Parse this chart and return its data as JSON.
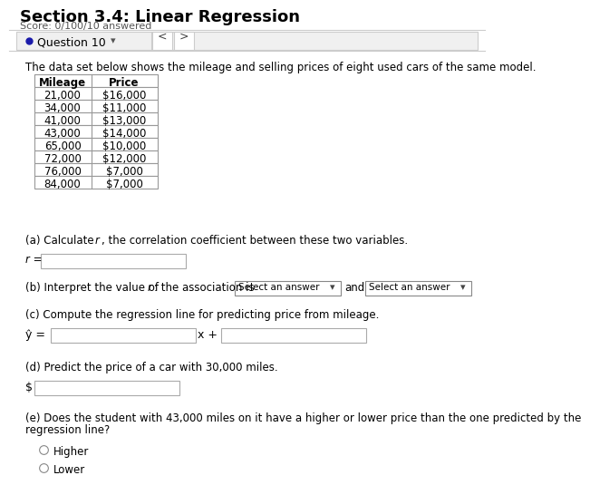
{
  "title": "Section 3.4: Linear Regression",
  "score_text": "Score: 0/10",
  "score_answered": "0/10 answered",
  "question_label": "Question 10",
  "intro_text": "The data set below shows the mileage and selling prices of eight used cars of the same model.",
  "table_headers": [
    "Mileage",
    "Price"
  ],
  "table_data": [
    [
      "21,000",
      "$16,000"
    ],
    [
      "34,000",
      "$11,000"
    ],
    [
      "41,000",
      "$13,000"
    ],
    [
      "43,000",
      "$14,000"
    ],
    [
      "65,000",
      "$10,000"
    ],
    [
      "72,000",
      "$12,000"
    ],
    [
      "76,000",
      "$7,000"
    ],
    [
      "84,000",
      "$7,000"
    ]
  ],
  "part_a_text1": "(a) Calculate ",
  "part_a_r": "r",
  "part_a_text2": ", the correlation coefficient between these two variables.",
  "r_label": "r =",
  "part_b_text1": "(b) Interpret the value of ",
  "part_b_r": "r",
  "part_b_text2": ": the association is",
  "part_b_dd1": "Select an answer",
  "part_b_and": "and",
  "part_b_dd2": "Select an answer",
  "part_c_text": "(c) Compute the regression line for predicting price from mileage.",
  "yhat_label": "ŷ =",
  "x_plus": "x +",
  "part_d_text": "(d) Predict the price of a car with 30,000 miles.",
  "dollar_label": "$",
  "part_e_line1": "(e) Does the student with 43,000 miles on it have a higher or lower price than the one predicted by the",
  "part_e_line2": "regression line?",
  "choice_higher": "Higher",
  "choice_lower": "Lower",
  "bg_color": "#ffffff",
  "header_bg": "#e8e8e8",
  "table_border": "#999999",
  "input_border": "#aaaaaa",
  "input_bg": "#ffffff",
  "title_color": "#000000",
  "text_color": "#000000",
  "score_color": "#555555",
  "nav_bg": "#f0f0f0",
  "nav_border": "#cccccc",
  "dot_color": "#1a1aaa",
  "dd_bg": "#ffffff",
  "dd_border": "#888888",
  "line_color": "#cccccc"
}
